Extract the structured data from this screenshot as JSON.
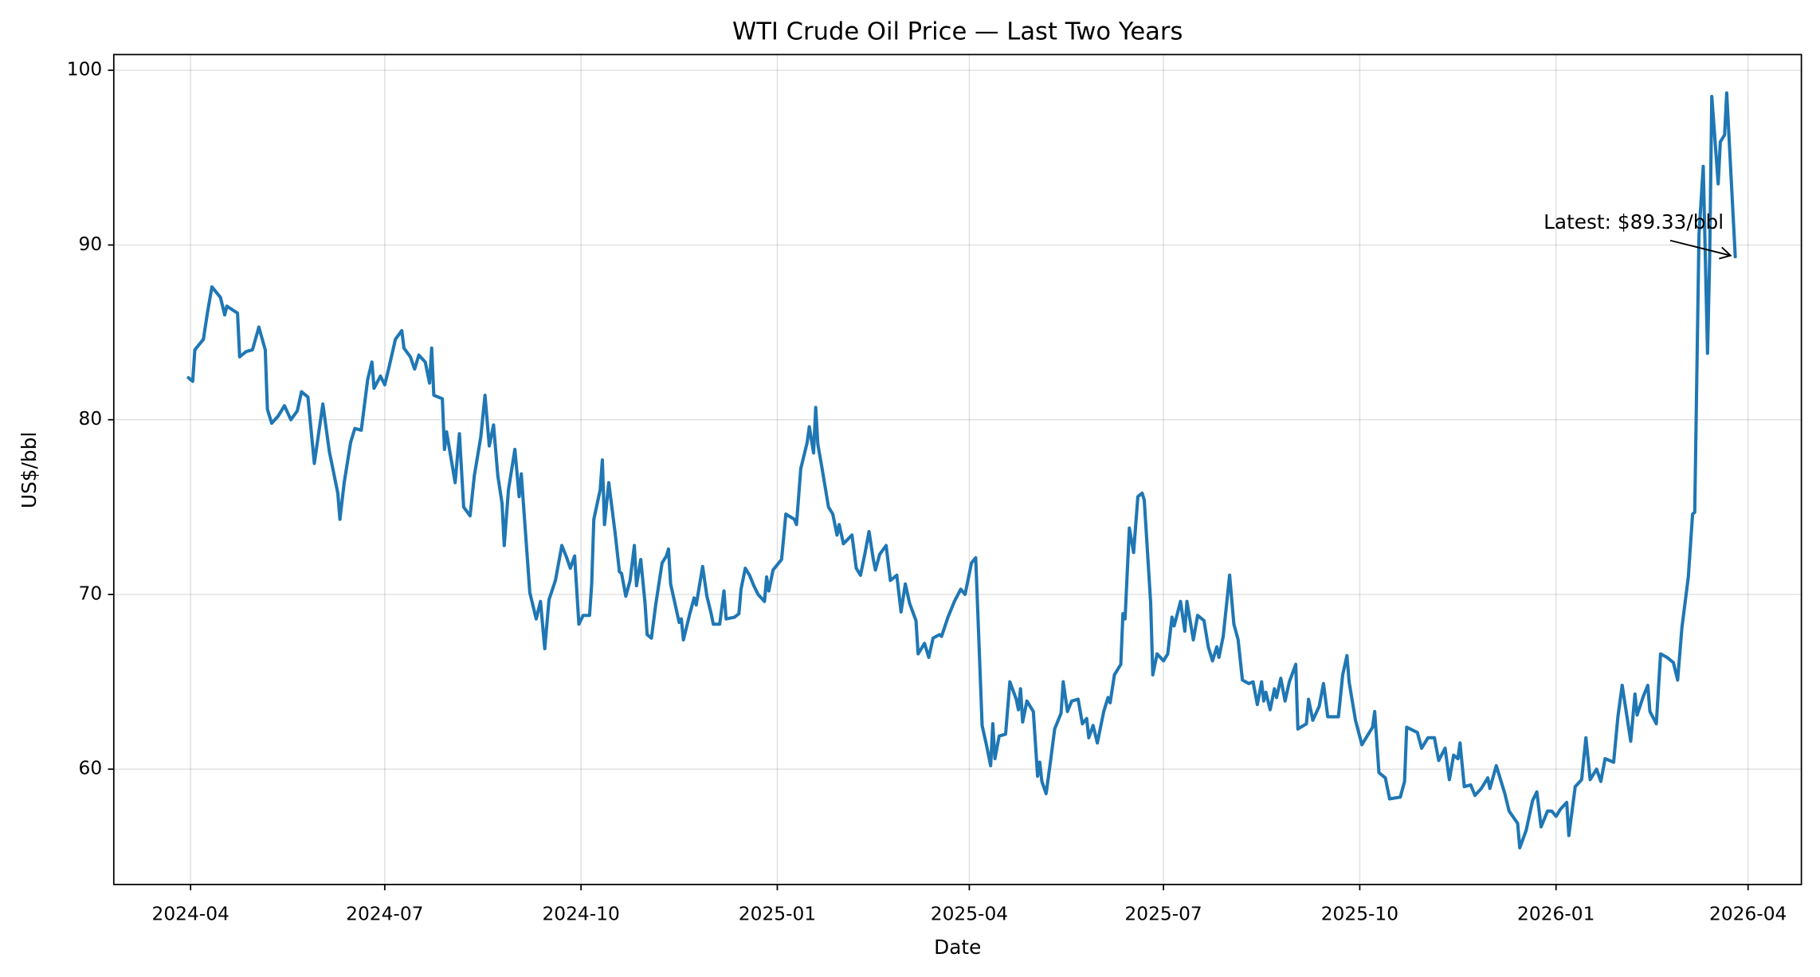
{
  "chart_data": {
    "type": "line",
    "title": "WTI Crude Oil Price — Last Two Years",
    "xlabel": "Date",
    "ylabel": "US$/bbl",
    "color": "#1f77b4",
    "grid": true,
    "xlim": [
      "2024-02-25",
      "2026-04-26"
    ],
    "ylim": [
      53.4,
      100.9
    ],
    "xticks": [
      {
        "value": "2024-04-01",
        "label": "2024-04"
      },
      {
        "value": "2024-07-01",
        "label": "2024-07"
      },
      {
        "value": "2024-10-01",
        "label": "2024-10"
      },
      {
        "value": "2025-01-01",
        "label": "2025-01"
      },
      {
        "value": "2025-04-01",
        "label": "2025-04"
      },
      {
        "value": "2025-07-01",
        "label": "2025-07"
      },
      {
        "value": "2025-10-01",
        "label": "2025-10"
      },
      {
        "value": "2026-01-01",
        "label": "2026-01"
      },
      {
        "value": "2026-04-01",
        "label": "2026-04"
      }
    ],
    "yticks": [
      60,
      70,
      80,
      90,
      100
    ],
    "annotation": "Latest: $89.33/bbl",
    "x": [
      "2024-03-31",
      "2024-04-02",
      "2024-04-03",
      "2024-04-07",
      "2024-04-09",
      "2024-04-11",
      "2024-04-15",
      "2024-04-17",
      "2024-04-18",
      "2024-04-23",
      "2024-04-24",
      "2024-04-27",
      "2024-04-30",
      "2024-05-03",
      "2024-05-06",
      "2024-05-07",
      "2024-05-09",
      "2024-05-12",
      "2024-05-15",
      "2024-05-18",
      "2024-05-21",
      "2024-05-23",
      "2024-05-26",
      "2024-05-29",
      "2024-06-02",
      "2024-06-05",
      "2024-06-09",
      "2024-06-10",
      "2024-06-12",
      "2024-06-15",
      "2024-06-17",
      "2024-06-20",
      "2024-06-23",
      "2024-06-25",
      "2024-06-26",
      "2024-06-29",
      "2024-07-01",
      "2024-07-03",
      "2024-07-06",
      "2024-07-09",
      "2024-07-10",
      "2024-07-13",
      "2024-07-15",
      "2024-07-17",
      "2024-07-20",
      "2024-07-22",
      "2024-07-23",
      "2024-07-24",
      "2024-07-28",
      "2024-07-29",
      "2024-07-30",
      "2024-08-03",
      "2024-08-05",
      "2024-08-07",
      "2024-08-10",
      "2024-08-12",
      "2024-08-15",
      "2024-08-17",
      "2024-08-19",
      "2024-08-21",
      "2024-08-23",
      "2024-08-25",
      "2024-08-26",
      "2024-08-28",
      "2024-08-31",
      "2024-09-02",
      "2024-09-03",
      "2024-09-05",
      "2024-09-07",
      "2024-09-10",
      "2024-09-12",
      "2024-09-14",
      "2024-09-16",
      "2024-09-19",
      "2024-09-22",
      "2024-09-24",
      "2024-09-26",
      "2024-09-28",
      "2024-09-30",
      "2024-10-02",
      "2024-10-05",
      "2024-10-06",
      "2024-10-07",
      "2024-10-10",
      "2024-10-11",
      "2024-10-12",
      "2024-10-14",
      "2024-10-17",
      "2024-10-19",
      "2024-10-20",
      "2024-10-22",
      "2024-10-24",
      "2024-10-26",
      "2024-10-27",
      "2024-10-29",
      "2024-10-31",
      "2024-11-01",
      "2024-11-03",
      "2024-11-05",
      "2024-11-08",
      "2024-11-10",
      "2024-11-11",
      "2024-11-12",
      "2024-11-16",
      "2024-11-17",
      "2024-11-18",
      "2024-11-21",
      "2024-11-23",
      "2024-11-24",
      "2024-11-27",
      "2024-11-29",
      "2024-12-01",
      "2024-12-02",
      "2024-12-05",
      "2024-12-07",
      "2024-12-08",
      "2024-12-12",
      "2024-12-14",
      "2024-12-15",
      "2024-12-17",
      "2024-12-19",
      "2024-12-21",
      "2024-12-23",
      "2024-12-26",
      "2024-12-27",
      "2024-12-28",
      "2024-12-30",
      "2025-01-03",
      "2025-01-05",
      "2025-01-09",
      "2025-01-10",
      "2025-01-12",
      "2025-01-15",
      "2025-01-16",
      "2025-01-18",
      "2025-01-19",
      "2025-01-20",
      "2025-01-22",
      "2025-01-25",
      "2025-01-27",
      "2025-01-29",
      "2025-01-30",
      "2025-02-01",
      "2025-02-05",
      "2025-02-07",
      "2025-02-09",
      "2025-02-11",
      "2025-02-13",
      "2025-02-15",
      "2025-02-16",
      "2025-02-18",
      "2025-02-21",
      "2025-02-23",
      "2025-02-26",
      "2025-02-28",
      "2025-03-02",
      "2025-03-04",
      "2025-03-07",
      "2025-03-08",
      "2025-03-11",
      "2025-03-13",
      "2025-03-15",
      "2025-03-18",
      "2025-03-19",
      "2025-03-22",
      "2025-03-25",
      "2025-03-28",
      "2025-03-30",
      "2025-04-02",
      "2025-04-04",
      "2025-04-07",
      "2025-04-09",
      "2025-04-11",
      "2025-04-12",
      "2025-04-13",
      "2025-04-15",
      "2025-04-18",
      "2025-04-20",
      "2025-04-23",
      "2025-04-24",
      "2025-04-25",
      "2025-04-26",
      "2025-04-28",
      "2025-05-01",
      "2025-05-03",
      "2025-05-04",
      "2025-05-05",
      "2025-05-07",
      "2025-05-09",
      "2025-05-11",
      "2025-05-14",
      "2025-05-15",
      "2025-05-17",
      "2025-05-19",
      "2025-05-22",
      "2025-05-24",
      "2025-05-26",
      "2025-05-27",
      "2025-05-29",
      "2025-05-31",
      "2025-06-03",
      "2025-06-05",
      "2025-06-06",
      "2025-06-08",
      "2025-06-11",
      "2025-06-12",
      "2025-06-13",
      "2025-06-15",
      "2025-06-17",
      "2025-06-19",
      "2025-06-21",
      "2025-06-22",
      "2025-06-25",
      "2025-06-26",
      "2025-06-28",
      "2025-07-01",
      "2025-07-03",
      "2025-07-05",
      "2025-07-06",
      "2025-07-09",
      "2025-07-11",
      "2025-07-12",
      "2025-07-15",
      "2025-07-17",
      "2025-07-20",
      "2025-07-22",
      "2025-07-24",
      "2025-07-26",
      "2025-07-27",
      "2025-07-29",
      "2025-08-01",
      "2025-08-03",
      "2025-08-05",
      "2025-08-07",
      "2025-08-10",
      "2025-08-12",
      "2025-08-14",
      "2025-08-16",
      "2025-08-17",
      "2025-08-18",
      "2025-08-20",
      "2025-08-22",
      "2025-08-23",
      "2025-08-25",
      "2025-08-27",
      "2025-08-29",
      "2025-09-01",
      "2025-09-02",
      "2025-09-06",
      "2025-09-07",
      "2025-09-09",
      "2025-09-12",
      "2025-09-14",
      "2025-09-16",
      "2025-09-21",
      "2025-09-23",
      "2025-09-25",
      "2025-09-26",
      "2025-09-29",
      "2025-10-02",
      "2025-10-04",
      "2025-10-07",
      "2025-10-08",
      "2025-10-10",
      "2025-10-13",
      "2025-10-15",
      "2025-10-20",
      "2025-10-22",
      "2025-10-23",
      "2025-10-28",
      "2025-10-30",
      "2025-11-02",
      "2025-11-05",
      "2025-11-07",
      "2025-11-10",
      "2025-11-12",
      "2025-11-14",
      "2025-11-16",
      "2025-11-17",
      "2025-11-19",
      "2025-11-22",
      "2025-11-24",
      "2025-11-27",
      "2025-11-30",
      "2025-12-01",
      "2025-12-04",
      "2025-12-08",
      "2025-12-10",
      "2025-12-14",
      "2025-12-15",
      "2025-12-18",
      "2025-12-21",
      "2025-12-23",
      "2025-12-25",
      "2025-12-28",
      "2025-12-30",
      "2026-01-01",
      "2026-01-03",
      "2026-01-06",
      "2026-01-07",
      "2026-01-10",
      "2026-01-13",
      "2026-01-15",
      "2026-01-17",
      "2026-01-20",
      "2026-01-22",
      "2026-01-24",
      "2026-01-28",
      "2026-01-30",
      "2026-02-01",
      "2026-02-05",
      "2026-02-07",
      "2026-02-08",
      "2026-02-11",
      "2026-02-13",
      "2026-02-14",
      "2026-02-17",
      "2026-02-19",
      "2026-02-22",
      "2026-02-25",
      "2026-02-27",
      "2026-03-01",
      "2026-03-04",
      "2026-03-06",
      "2026-03-07",
      "2026-03-09",
      "2026-03-11",
      "2026-03-13",
      "2026-03-14",
      "2026-03-15",
      "2026-03-18",
      "2026-03-19",
      "2026-03-21",
      "2026-03-22",
      "2026-03-26"
    ],
    "values": [
      82.4,
      82.2,
      84.0,
      84.6,
      86.2,
      87.6,
      87.0,
      86.0,
      86.5,
      86.1,
      83.6,
      83.9,
      84.0,
      85.3,
      84.0,
      80.6,
      79.8,
      80.2,
      80.8,
      80.0,
      80.5,
      81.6,
      81.3,
      77.5,
      80.9,
      78.2,
      75.8,
      74.3,
      76.4,
      78.7,
      79.5,
      79.4,
      82.3,
      83.3,
      81.8,
      82.5,
      82.0,
      83.0,
      84.6,
      85.1,
      84.1,
      83.6,
      82.9,
      83.7,
      83.3,
      82.1,
      84.1,
      81.4,
      81.2,
      78.3,
      79.3,
      76.4,
      79.2,
      75.0,
      74.5,
      76.8,
      79.0,
      81.4,
      78.5,
      79.7,
      76.8,
      75.2,
      72.8,
      76.0,
      78.3,
      75.6,
      76.9,
      73.5,
      70.1,
      68.6,
      69.6,
      66.9,
      69.7,
      70.8,
      72.8,
      72.2,
      71.5,
      72.2,
      68.3,
      68.8,
      68.8,
      70.6,
      74.3,
      76.0,
      77.7,
      74.0,
      76.4,
      73.5,
      71.3,
      71.2,
      69.9,
      70.8,
      72.8,
      70.5,
      72.0,
      69.5,
      67.7,
      67.5,
      69.4,
      71.8,
      72.2,
      72.6,
      70.6,
      68.4,
      68.6,
      67.4,
      68.9,
      69.8,
      69.4,
      71.6,
      69.9,
      68.9,
      68.3,
      68.3,
      70.2,
      68.6,
      68.7,
      68.9,
      70.3,
      71.5,
      71.1,
      70.5,
      70.0,
      69.6,
      71.0,
      70.2,
      71.4,
      72.0,
      74.6,
      74.3,
      74.0,
      77.2,
      78.7,
      79.6,
      78.1,
      80.7,
      78.6,
      77.2,
      75.0,
      74.6,
      73.4,
      74.0,
      72.9,
      73.4,
      71.5,
      71.1,
      72.3,
      73.6,
      72.0,
      71.4,
      72.3,
      72.8,
      70.8,
      71.1,
      69.0,
      70.6,
      69.5,
      68.5,
      66.6,
      67.2,
      66.4,
      67.5,
      67.7,
      67.6,
      68.7,
      69.6,
      70.3,
      70.0,
      71.8,
      72.1,
      62.5,
      61.4,
      60.2,
      62.6,
      60.6,
      61.9,
      62.0,
      65.0,
      64.0,
      63.4,
      64.6,
      62.7,
      63.9,
      63.3,
      59.6,
      60.4,
      59.3,
      58.6,
      60.4,
      62.3,
      63.2,
      65.0,
      63.3,
      63.9,
      64.0,
      62.6,
      62.9,
      61.8,
      62.5,
      61.5,
      63.3,
      64.1,
      63.8,
      65.4,
      66.0,
      68.9,
      68.6,
      73.8,
      72.4,
      75.6,
      75.8,
      75.4,
      69.5,
      65.4,
      66.6,
      66.2,
      66.6,
      68.7,
      68.2,
      69.6,
      67.9,
      69.6,
      67.4,
      68.8,
      68.5,
      67.0,
      66.2,
      67.0,
      66.4,
      67.6,
      71.1,
      68.3,
      67.4,
      65.1,
      64.9,
      65.0,
      63.7,
      65.0,
      63.9,
      64.4,
      63.4,
      64.6,
      64.1,
      65.2,
      63.9,
      65.0,
      66.0,
      62.3,
      62.6,
      64.0,
      62.8,
      63.6,
      64.9,
      63.0,
      63.0,
      65.4,
      66.5,
      65.0,
      62.8,
      61.4,
      61.8,
      62.4,
      63.3,
      59.8,
      59.5,
      58.3,
      58.4,
      59.3,
      62.4,
      62.1,
      61.2,
      61.8,
      61.8,
      60.5,
      61.2,
      59.4,
      60.8,
      60.6,
      61.5,
      59.0,
      59.1,
      58.5,
      58.9,
      59.5,
      58.9,
      60.2,
      58.6,
      57.6,
      56.9,
      55.5,
      56.5,
      58.2,
      58.7,
      56.7,
      57.6,
      57.6,
      57.3,
      57.7,
      58.1,
      56.2,
      59.0,
      59.4,
      61.8,
      59.4,
      60.0,
      59.3,
      60.6,
      60.4,
      63.0,
      64.8,
      61.6,
      64.3,
      63.1,
      64.2,
      64.8,
      63.3,
      62.6,
      66.6,
      66.4,
      66.1,
      65.1,
      68.1,
      71.0,
      74.6,
      74.7,
      90.6,
      94.5,
      83.8,
      89.2,
      98.5,
      93.5,
      95.9,
      96.3,
      98.7,
      89.33
    ]
  }
}
